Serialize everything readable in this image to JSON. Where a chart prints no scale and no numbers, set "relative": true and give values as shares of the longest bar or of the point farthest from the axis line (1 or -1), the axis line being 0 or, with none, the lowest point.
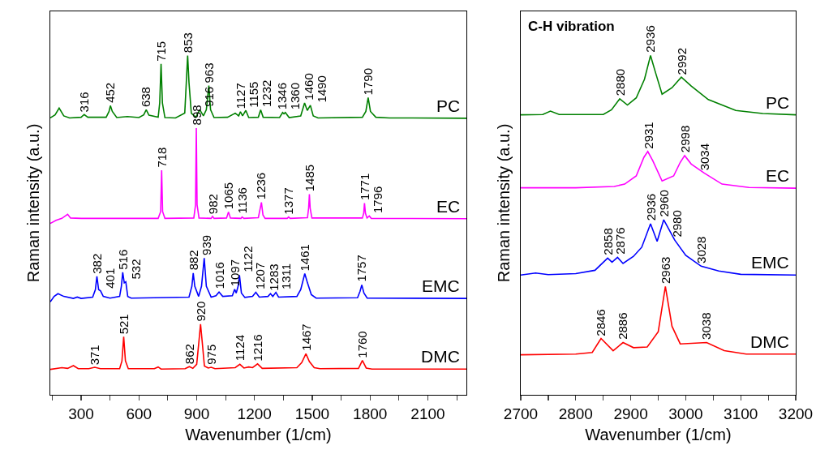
{
  "chart_data": [
    {
      "type": "line",
      "relative": true,
      "xlabel": "Wavenumber (1/cm)",
      "ylabel": "Raman intensity (a.u.)",
      "xlim": [
        140,
        2300
      ],
      "xticks": [
        {
          "value": 150,
          "label": null
        },
        300,
        {
          "value": 450,
          "label": null
        },
        600,
        {
          "value": 750,
          "label": null
        },
        900,
        {
          "value": 1050,
          "label": null
        },
        1200,
        {
          "value": 1350,
          "label": null
        },
        1500,
        {
          "value": 1650,
          "label": null
        },
        1800,
        {
          "value": 1950,
          "label": null
        },
        2100,
        {
          "value": 2250,
          "label": null
        }
      ],
      "tick_labels": "x",
      "legend": false,
      "grid": false,
      "series": [
        {
          "name": "PC",
          "color": "#008000",
          "x": [
            140,
            165,
            186,
            210,
            240,
            300,
            316,
            335,
            430,
            445,
            452,
            462,
            485,
            540,
            600,
            625,
            638,
            652,
            700,
            708,
            715,
            722,
            735,
            790,
            838,
            846,
            853,
            860,
            872,
            895,
            916,
            935,
            950,
            963,
            972,
            990,
            1060,
            1100,
            1118,
            1127,
            1138,
            1155,
            1170,
            1220,
            1232,
            1245,
            1330,
            1346,
            1353,
            1360,
            1380,
            1440,
            1460,
            1474,
            1490,
            1505,
            1530,
            1760,
            1778,
            1790,
            1802,
            1830,
            1900,
            2300
          ],
          "values": [
            0.816,
            0.825,
            0.845,
            0.822,
            0.816,
            0.818,
            0.826,
            0.818,
            0.818,
            0.835,
            0.852,
            0.835,
            0.817,
            0.82,
            0.817,
            0.825,
            0.84,
            0.824,
            0.818,
            0.86,
            0.975,
            0.86,
            0.817,
            0.816,
            0.83,
            0.92,
            1,
            0.92,
            0.83,
            0.818,
            0.84,
            0.822,
            0.84,
            0.911,
            0.84,
            0.817,
            0.818,
            0.83,
            0.822,
            0.834,
            0.822,
            0.838,
            0.817,
            0.818,
            0.84,
            0.818,
            0.817,
            0.832,
            0.828,
            0.832,
            0.817,
            0.822,
            0.86,
            0.838,
            0.853,
            0.822,
            0.816,
            0.818,
            0.835,
            0.876,
            0.835,
            0.818,
            0.816,
            0.815
          ]
        },
        {
          "name": "EC",
          "color": "#ff00ff",
          "x": [
            140,
            170,
            200,
            230,
            245,
            300,
            700,
            713,
            718,
            723,
            735,
            885,
            894,
            898,
            902,
            912,
            975,
            982,
            990,
            1055,
            1065,
            1075,
            1130,
            1136,
            1145,
            1220,
            1230,
            1236,
            1244,
            1255,
            1370,
            1377,
            1385,
            1475,
            1481,
            1485,
            1489,
            1498,
            1760,
            1767,
            1771,
            1776,
            1784,
            1796,
            1806,
            2300
          ],
          "values": [
            0.505,
            0.514,
            0.52,
            0.532,
            0.521,
            0.52,
            0.52,
            0.54,
            0.662,
            0.54,
            0.52,
            0.521,
            0.56,
            0.786,
            0.56,
            0.521,
            0.52,
            0.526,
            0.52,
            0.521,
            0.539,
            0.521,
            0.52,
            0.524,
            0.52,
            0.522,
            0.55,
            0.567,
            0.53,
            0.52,
            0.52,
            0.524,
            0.52,
            0.522,
            0.55,
            0.591,
            0.55,
            0.521,
            0.521,
            0.535,
            0.565,
            0.535,
            0.521,
            0.527,
            0.52,
            0.519
          ]
        },
        {
          "name": "EMC",
          "color": "#0000ff",
          "x": [
            140,
            160,
            180,
            210,
            260,
            280,
            300,
            360,
            374,
            382,
            391,
            401,
            415,
            450,
            500,
            509,
            516,
            524,
            532,
            542,
            560,
            860,
            875,
            882,
            890,
            910,
            925,
            939,
            950,
            975,
            1000,
            1016,
            1035,
            1085,
            1097,
            1105,
            1115,
            1122,
            1132,
            1150,
            1190,
            1207,
            1225,
            1270,
            1283,
            1295,
            1311,
            1325,
            1420,
            1440,
            1461,
            1475,
            1495,
            1520,
            1735,
            1748,
            1757,
            1768,
            1785,
            2300
          ],
          "values": [
            0.274,
            0.29,
            0.298,
            0.29,
            0.284,
            0.288,
            0.284,
            0.288,
            0.31,
            0.349,
            0.31,
            0.306,
            0.29,
            0.285,
            0.29,
            0.32,
            0.361,
            0.33,
            0.333,
            0.29,
            0.285,
            0.288,
            0.32,
            0.359,
            0.32,
            0.29,
            0.32,
            0.403,
            0.32,
            0.288,
            0.292,
            0.303,
            0.29,
            0.292,
            0.311,
            0.3,
            0.32,
            0.353,
            0.3,
            0.287,
            0.29,
            0.302,
            0.288,
            0.29,
            0.298,
            0.29,
            0.302,
            0.288,
            0.29,
            0.31,
            0.357,
            0.33,
            0.295,
            0.285,
            0.286,
            0.305,
            0.324,
            0.3,
            0.285,
            0.284
          ]
        },
        {
          "name": "DMC",
          "color": "#ff0000",
          "x": [
            140,
            200,
            230,
            260,
            285,
            340,
            371,
            400,
            500,
            512,
            521,
            530,
            545,
            680,
            700,
            715,
            840,
            862,
            880,
            900,
            912,
            920,
            928,
            940,
            960,
            975,
            995,
            1100,
            1124,
            1145,
            1170,
            1190,
            1216,
            1240,
            1420,
            1445,
            1467,
            1485,
            1510,
            1540,
            1740,
            1760,
            1780,
            1810,
            2300
          ],
          "values": [
            0.075,
            0.08,
            0.078,
            0.086,
            0.077,
            0.077,
            0.081,
            0.077,
            0.077,
            0.1,
            0.171,
            0.1,
            0.077,
            0.077,
            0.082,
            0.076,
            0.077,
            0.083,
            0.078,
            0.09,
            0.16,
            0.208,
            0.16,
            0.085,
            0.079,
            0.081,
            0.077,
            0.08,
            0.09,
            0.079,
            0.082,
            0.08,
            0.091,
            0.078,
            0.08,
            0.095,
            0.121,
            0.098,
            0.08,
            0.077,
            0.078,
            0.101,
            0.079,
            0.076,
            0.076
          ]
        }
      ],
      "annotations": [
        {
          "text": "316",
          "x": 316,
          "y": 0.826
        },
        {
          "text": "452",
          "x": 452,
          "y": 0.852
        },
        {
          "text": "638",
          "x": 638,
          "y": 0.84
        },
        {
          "text": "715",
          "x": 715,
          "y": 0.975
        },
        {
          "text": "853",
          "x": 853,
          "y": 1
        },
        {
          "text": "916",
          "x": 916,
          "y": 0.84
        },
        {
          "text": "963",
          "x": 963,
          "y": 0.911
        },
        {
          "text": "1127",
          "x": 1127,
          "y": 0.834
        },
        {
          "text": "1155",
          "x": 1155,
          "y": 0.838
        },
        {
          "text": "1232",
          "x": 1232,
          "y": 0.84
        },
        {
          "text": "1346",
          "x": 1346,
          "y": 0.832
        },
        {
          "text": "1360",
          "x": 1360,
          "y": 0.832
        },
        {
          "text": "1460",
          "x": 1460,
          "y": 0.86
        },
        {
          "text": "1490",
          "x": 1490,
          "y": 0.853
        },
        {
          "text": "1790",
          "x": 1790,
          "y": 0.876
        },
        {
          "text": "718",
          "x": 718,
          "y": 0.662
        },
        {
          "text": "898",
          "x": 898,
          "y": 0.786
        },
        {
          "text": "982",
          "x": 982,
          "y": 0.526
        },
        {
          "text": "1065",
          "x": 1065,
          "y": 0.539
        },
        {
          "text": "1136",
          "x": 1136,
          "y": 0.524
        },
        {
          "text": "1236",
          "x": 1236,
          "y": 0.567
        },
        {
          "text": "1377",
          "x": 1377,
          "y": 0.524
        },
        {
          "text": "1485",
          "x": 1485,
          "y": 0.591
        },
        {
          "text": "1771",
          "x": 1771,
          "y": 0.565
        },
        {
          "text": "1796",
          "x": 1796,
          "y": 0.527
        },
        {
          "text": "382",
          "x": 382,
          "y": 0.349
        },
        {
          "text": "401",
          "x": 401,
          "y": 0.306
        },
        {
          "text": "516",
          "x": 516,
          "y": 0.361
        },
        {
          "text": "532",
          "x": 532,
          "y": 0.333
        },
        {
          "text": "882",
          "x": 882,
          "y": 0.359
        },
        {
          "text": "939",
          "x": 939,
          "y": 0.403
        },
        {
          "text": "1016",
          "x": 1016,
          "y": 0.303
        },
        {
          "text": "1097",
          "x": 1097,
          "y": 0.311
        },
        {
          "text": "1122",
          "x": 1122,
          "y": 0.353
        },
        {
          "text": "1207",
          "x": 1207,
          "y": 0.302
        },
        {
          "text": "1283",
          "x": 1283,
          "y": 0.298
        },
        {
          "text": "1311",
          "x": 1311,
          "y": 0.302
        },
        {
          "text": "1461",
          "x": 1461,
          "y": 0.357
        },
        {
          "text": "1757",
          "x": 1757,
          "y": 0.324
        },
        {
          "text": "371",
          "x": 371,
          "y": 0.081
        },
        {
          "text": "521",
          "x": 521,
          "y": 0.171
        },
        {
          "text": "862",
          "x": 862,
          "y": 0.083
        },
        {
          "text": "920",
          "x": 920,
          "y": 0.208
        },
        {
          "text": "975",
          "x": 975,
          "y": 0.081
        },
        {
          "text": "1124",
          "x": 1124,
          "y": 0.09
        },
        {
          "text": "1216",
          "x": 1216,
          "y": 0.091
        },
        {
          "text": "1467",
          "x": 1467,
          "y": 0.121
        },
        {
          "text": "1760",
          "x": 1760,
          "y": 0.101
        }
      ]
    },
    {
      "type": "line",
      "relative": true,
      "xlabel": "Wavenumber (1/cm)",
      "ylabel": "Raman intensity (a.u.)",
      "xlim": [
        2700,
        3200
      ],
      "xticks": [
        2700,
        {
          "value": 2750,
          "label": null
        },
        2800,
        {
          "value": 2850,
          "label": null
        },
        2900,
        {
          "value": 2950,
          "label": null
        },
        3000,
        {
          "value": 3050,
          "label": null
        },
        3100,
        {
          "value": 3150,
          "label": null
        },
        3200
      ],
      "tick_labels": "x",
      "legend": false,
      "grid": false,
      "series": [
        {
          "name": "PC",
          "color": "#008000",
          "x": [
            2700,
            2740,
            2754,
            2770,
            2850,
            2865,
            2880,
            2894,
            2910,
            2925,
            2936,
            2945,
            2957,
            2975,
            2992,
            3010,
            3041,
            3091,
            3140,
            3200
          ],
          "values": [
            0.825,
            0.826,
            0.836,
            0.826,
            0.826,
            0.84,
            0.872,
            0.854,
            0.875,
            0.93,
            1,
            0.95,
            0.886,
            0.905,
            0.936,
            0.91,
            0.87,
            0.838,
            0.829,
            0.825
          ]
        },
        {
          "name": "EC",
          "color": "#ff00ff",
          "x": [
            2700,
            2800,
            2870,
            2889,
            2910,
            2924,
            2931,
            2940,
            2957,
            2978,
            2990,
            2998,
            3010,
            3034,
            3066,
            3115,
            3200
          ],
          "values": [
            0.61,
            0.61,
            0.614,
            0.621,
            0.645,
            0.7,
            0.717,
            0.69,
            0.63,
            0.645,
            0.685,
            0.705,
            0.68,
            0.653,
            0.621,
            0.611,
            0.609
          ]
        },
        {
          "name": "EMC",
          "color": "#0000ff",
          "x": [
            2700,
            2727,
            2750,
            2800,
            2835,
            2858,
            2866,
            2876,
            2886,
            2905,
            2920,
            2936,
            2948,
            2960,
            2980,
            3000,
            3028,
            3060,
            3100,
            3200
          ],
          "values": [
            0.353,
            0.359,
            0.354,
            0.357,
            0.367,
            0.403,
            0.391,
            0.405,
            0.387,
            0.408,
            0.435,
            0.504,
            0.452,
            0.516,
            0.456,
            0.411,
            0.379,
            0.365,
            0.355,
            0.353
          ]
        },
        {
          "name": "DMC",
          "color": "#ff0000",
          "x": [
            2700,
            2800,
            2830,
            2846,
            2868,
            2886,
            2905,
            2930,
            2950,
            2963,
            2975,
            2990,
            3038,
            3070,
            3110,
            3200
          ],
          "values": [
            0.118,
            0.12,
            0.125,
            0.166,
            0.13,
            0.154,
            0.139,
            0.141,
            0.186,
            0.319,
            0.202,
            0.15,
            0.154,
            0.13,
            0.12,
            0.12
          ]
        }
      ],
      "annotations": [
        "C-H vibration",
        {
          "text": "2880",
          "x": 2880,
          "y": 0.872
        },
        {
          "text": "2936",
          "x": 2936,
          "y": 1
        },
        {
          "text": "2992",
          "x": 2992,
          "y": 0.936
        },
        {
          "text": "2931",
          "x": 2931,
          "y": 0.717
        },
        {
          "text": "2998",
          "x": 2998,
          "y": 0.705
        },
        {
          "text": "3034",
          "x": 3034,
          "y": 0.653
        },
        {
          "text": "2858",
          "x": 2858,
          "y": 0.403
        },
        {
          "text": "2876",
          "x": 2876,
          "y": 0.405
        },
        {
          "text": "2936",
          "x": 2936,
          "y": 0.504
        },
        {
          "text": "2960",
          "x": 2960,
          "y": 0.516
        },
        {
          "text": "2980",
          "x": 2980,
          "y": 0.456
        },
        {
          "text": "3028",
          "x": 3028,
          "y": 0.379
        },
        {
          "text": "2846",
          "x": 2846,
          "y": 0.166
        },
        {
          "text": "2886",
          "x": 2886,
          "y": 0.154
        },
        {
          "text": "2963",
          "x": 2963,
          "y": 0.319
        },
        {
          "text": "3038",
          "x": 3038,
          "y": 0.154
        }
      ]
    }
  ]
}
